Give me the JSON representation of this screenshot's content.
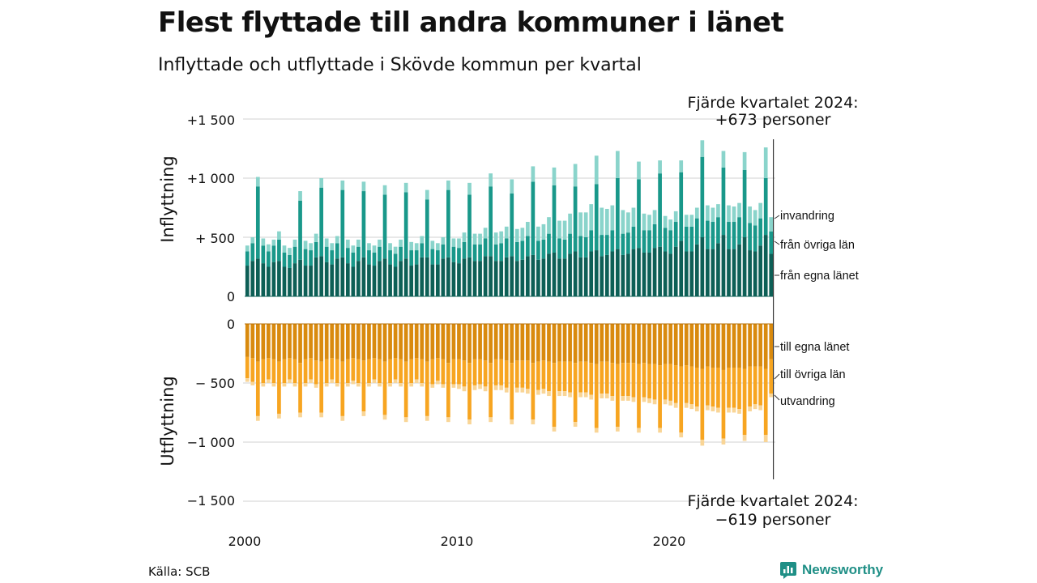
{
  "title": "Flest flyttade till andra kommuner i länet",
  "subtitle": "Inflyttade och utflyttade i Skövde kommun per kvartal",
  "source": "Källa: SCB",
  "brand": "Newsworthy",
  "colors": {
    "in_egna": "#0d5f56",
    "in_ovriga": "#19988a",
    "in_invandring": "#8ad4cb",
    "out_egna": "#d98a0e",
    "out_ovriga": "#f7a521",
    "out_utvandring": "#f9d596",
    "grid": "#d9d9d9",
    "brand": "#1f8f86"
  },
  "chart_data": {
    "type": "bar",
    "stacked": true,
    "diverging": true,
    "x_start": "2000 Q1",
    "x_end": "2024 Q4",
    "x_ticks": [
      "2000",
      "2010",
      "2020"
    ],
    "panels": {
      "inflyttning": {
        "axis_title": "Inflyttning",
        "ylim": [
          0,
          1500
        ],
        "yticks": [
          0,
          500,
          1000,
          1500
        ],
        "ytick_labels": [
          "0",
          "+ 500",
          "+1 000",
          "+1 500"
        ],
        "series": [
          {
            "name": "från egna länet",
            "key": "in_egna",
            "values": [
              260,
              300,
              320,
              280,
              250,
              290,
              300,
              250,
              240,
              280,
              310,
              260,
              260,
              330,
              340,
              290,
              270,
              320,
              330,
              280,
              250,
              300,
              330,
              270,
              260,
              300,
              320,
              270,
              250,
              300,
              320,
              260,
              270,
              330,
              330,
              270,
              270,
              320,
              330,
              290,
              280,
              320,
              330,
              300,
              300,
              340,
              340,
              300,
              300,
              330,
              340,
              300,
              310,
              340,
              350,
              310,
              320,
              360,
              370,
              320,
              320,
              360,
              380,
              330,
              330,
              380,
              390,
              340,
              350,
              380,
              400,
              350,
              360,
              400,
              410,
              370,
              370,
              410,
              420,
              380,
              360,
              420,
              470,
              380,
              380,
              440,
              500,
              400,
              400,
              450,
              520,
              400,
              400,
              440,
              500,
              390,
              380,
              430,
              520,
              360
            ]
          },
          {
            "name": "från övriga län",
            "key": "in_ovriga",
            "values": [
              120,
              150,
              610,
              150,
              130,
              140,
              180,
              120,
              110,
              140,
              500,
              140,
              130,
              130,
              580,
              130,
              120,
              130,
              570,
              130,
              120,
              120,
              560,
              120,
              110,
              120,
              540,
              120,
              110,
              120,
              560,
              130,
              120,
              120,
              490,
              130,
              120,
              120,
              570,
              130,
              130,
              140,
              530,
              140,
              140,
              150,
              590,
              140,
              150,
              160,
              530,
              160,
              160,
              170,
              620,
              160,
              160,
              170,
              570,
              170,
              160,
              170,
              550,
              180,
              170,
              180,
              560,
              180,
              170,
              180,
              600,
              180,
              180,
              190,
              580,
              190,
              190,
              200,
              620,
              200,
              200,
              210,
              580,
              210,
              210,
              220,
              680,
              240,
              230,
              220,
              570,
              230,
              230,
              230,
              570,
              230,
              220,
              230,
              480,
              190
            ]
          },
          {
            "name": "invandring",
            "key": "in_invandring",
            "values": [
              50,
              50,
              80,
              60,
              60,
              50,
              70,
              60,
              60,
              60,
              80,
              70,
              60,
              70,
              80,
              70,
              60,
              60,
              80,
              70,
              60,
              60,
              80,
              60,
              60,
              60,
              80,
              60,
              60,
              60,
              80,
              70,
              60,
              60,
              80,
              70,
              60,
              60,
              80,
              70,
              80,
              80,
              100,
              90,
              90,
              90,
              110,
              100,
              100,
              100,
              120,
              110,
              110,
              120,
              130,
              120,
              130,
              140,
              150,
              150,
              160,
              170,
              190,
              200,
              210,
              220,
              240,
              230,
              220,
              210,
              230,
              200,
              170,
              160,
              150,
              140,
              130,
              120,
              110,
              100,
              90,
              90,
              100,
              100,
              100,
              90,
              140,
              130,
              120,
              110,
              140,
              140,
              130,
              120,
              150,
              140,
              130,
              130,
              260,
              120
            ]
          }
        ]
      },
      "utflyttning": {
        "axis_title": "Utflyttning",
        "ylim": [
          -1500,
          0
        ],
        "yticks": [
          0,
          -500,
          -1000,
          -1500
        ],
        "ytick_labels": [
          "0",
          "−  500",
          "−1 000",
          "−1 500"
        ],
        "series": [
          {
            "name": "till egna länet",
            "key": "out_egna",
            "values": [
              -280,
              -290,
              -320,
              -300,
              -290,
              -300,
              -320,
              -300,
              -290,
              -300,
              -330,
              -300,
              -290,
              -310,
              -320,
              -300,
              -290,
              -300,
              -320,
              -300,
              -290,
              -300,
              -310,
              -300,
              -290,
              -300,
              -320,
              -300,
              -290,
              -300,
              -320,
              -300,
              -290,
              -300,
              -320,
              -300,
              -290,
              -300,
              -330,
              -300,
              -300,
              -310,
              -330,
              -300,
              -300,
              -310,
              -330,
              -300,
              -300,
              -310,
              -330,
              -310,
              -310,
              -310,
              -330,
              -320,
              -310,
              -320,
              -330,
              -320,
              -320,
              -320,
              -330,
              -320,
              -320,
              -330,
              -340,
              -320,
              -320,
              -330,
              -340,
              -330,
              -330,
              -330,
              -340,
              -330,
              -340,
              -340,
              -350,
              -340,
              -340,
              -350,
              -360,
              -350,
              -360,
              -370,
              -380,
              -360,
              -370,
              -370,
              -390,
              -370,
              -370,
              -370,
              -380,
              -360,
              -360,
              -360,
              -380,
              -300
            ]
          },
          {
            "name": "till övriga län",
            "key": "out_ovriga",
            "values": [
              -180,
              -200,
              -460,
              -200,
              -180,
              -200,
              -440,
              -200,
              -180,
              -200,
              -420,
              -200,
              -180,
              -200,
              -430,
              -200,
              -180,
              -200,
              -460,
              -200,
              -190,
              -200,
              -430,
              -200,
              -180,
              -200,
              -450,
              -200,
              -180,
              -200,
              -470,
              -200,
              -180,
              -200,
              -460,
              -210,
              -190,
              -210,
              -460,
              -210,
              -210,
              -220,
              -480,
              -220,
              -210,
              -220,
              -460,
              -220,
              -220,
              -230,
              -480,
              -230,
              -230,
              -240,
              -480,
              -240,
              -240,
              -250,
              -540,
              -250,
              -250,
              -260,
              -500,
              -260,
              -260,
              -270,
              -540,
              -270,
              -270,
              -280,
              -530,
              -280,
              -280,
              -290,
              -540,
              -290,
              -290,
              -300,
              -530,
              -300,
              -310,
              -320,
              -560,
              -320,
              -320,
              -330,
              -600,
              -330,
              -330,
              -340,
              -580,
              -340,
              -340,
              -350,
              -560,
              -340,
              -320,
              -330,
              -560,
              -290
            ]
          },
          {
            "name": "utvandring",
            "key": "out_utvandring",
            "values": [
              -30,
              -30,
              -40,
              -30,
              -30,
              -30,
              -40,
              -30,
              -30,
              -30,
              -40,
              -30,
              -30,
              -30,
              -40,
              -30,
              -30,
              -30,
              -40,
              -30,
              -30,
              -30,
              -40,
              -30,
              -30,
              -30,
              -40,
              -30,
              -30,
              -30,
              -40,
              -30,
              -30,
              -30,
              -40,
              -30,
              -30,
              -30,
              -40,
              -30,
              -40,
              -40,
              -40,
              -40,
              -40,
              -40,
              -40,
              -40,
              -40,
              -40,
              -40,
              -40,
              -40,
              -40,
              -40,
              -40,
              -40,
              -40,
              -40,
              -40,
              -40,
              -40,
              -40,
              -40,
              -40,
              -40,
              -40,
              -40,
              -40,
              -40,
              -40,
              -40,
              -40,
              -40,
              -40,
              -40,
              -40,
              -40,
              -40,
              -40,
              -40,
              -40,
              -40,
              -40,
              -40,
              -40,
              -50,
              -40,
              -40,
              -40,
              -50,
              -40,
              -40,
              -40,
              -50,
              -40,
              -40,
              -40,
              -60,
              -30
            ]
          }
        ]
      }
    },
    "annotations": {
      "top_line1": "Fjärde kvartalet 2024:",
      "top_line2": "+673 personer",
      "bottom_line1": "Fjärde kvartalet 2024:",
      "bottom_line2": "−619 personer"
    }
  }
}
